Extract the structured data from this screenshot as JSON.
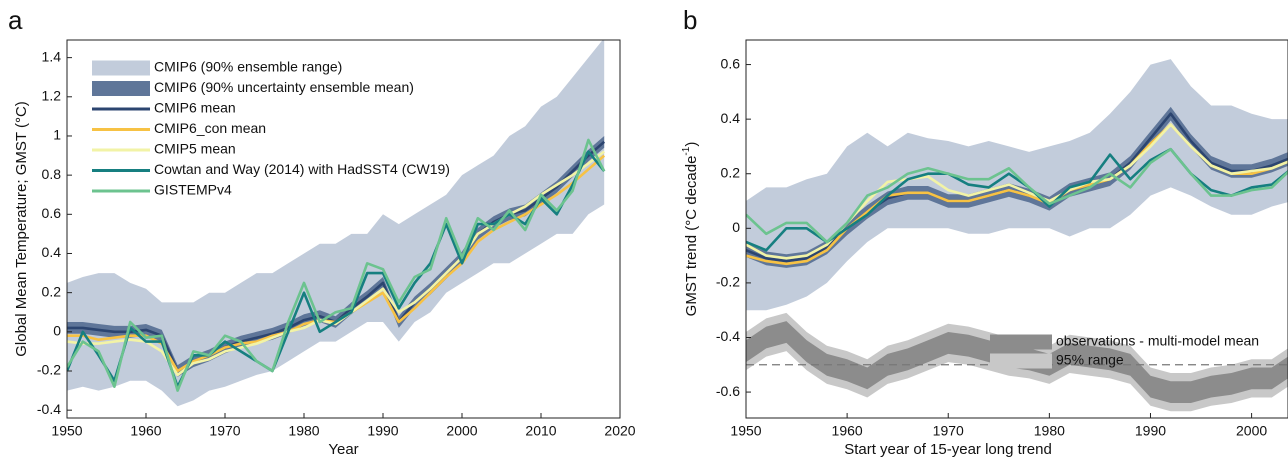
{
  "chart_data": [
    {
      "type": "line",
      "panel_label": "a",
      "xlabel": "Year",
      "ylabel": "Global Mean Temperature; GMST (°C)",
      "xlim": [
        1950,
        2020
      ],
      "ylim": [
        -0.44,
        1.49
      ],
      "xticks": [
        1950,
        1960,
        1970,
        1980,
        1990,
        2000,
        2010,
        2020
      ],
      "yticks": [
        -0.4,
        -0.2,
        0,
        0.2,
        0.4,
        0.6,
        0.8,
        1,
        1.2,
        1.4
      ],
      "x": [
        1950,
        1952,
        1954,
        1956,
        1958,
        1960,
        1962,
        1964,
        1966,
        1968,
        1970,
        1972,
        1974,
        1976,
        1978,
        1980,
        1982,
        1984,
        1986,
        1988,
        1990,
        1992,
        1994,
        1996,
        1998,
        2000,
        2002,
        2004,
        2006,
        2008,
        2010,
        2012,
        2014,
        2016,
        2018
      ],
      "series": [
        {
          "name": "CMIP6 (90% ensemble range)",
          "kind": "band",
          "color": "#c2ccdb",
          "lower": [
            -0.3,
            -0.28,
            -0.3,
            -0.28,
            -0.25,
            -0.25,
            -0.3,
            -0.38,
            -0.35,
            -0.3,
            -0.28,
            -0.25,
            -0.22,
            -0.2,
            -0.15,
            -0.1,
            -0.05,
            -0.05,
            0,
            0.05,
            0.05,
            -0.05,
            0.05,
            0.1,
            0.2,
            0.25,
            0.3,
            0.35,
            0.35,
            0.4,
            0.45,
            0.5,
            0.5,
            0.6,
            0.65
          ],
          "upper": [
            0.25,
            0.28,
            0.3,
            0.3,
            0.25,
            0.22,
            0.15,
            0.15,
            0.15,
            0.2,
            0.2,
            0.25,
            0.3,
            0.3,
            0.35,
            0.4,
            0.45,
            0.45,
            0.5,
            0.5,
            0.6,
            0.55,
            0.6,
            0.65,
            0.7,
            0.8,
            0.85,
            0.9,
            1.0,
            1.05,
            1.15,
            1.2,
            1.3,
            1.4,
            1.5
          ]
        },
        {
          "name": "CMIP6 (90% uncertainty ensemble mean)",
          "kind": "band",
          "color": "#5f7699",
          "lower": [
            -0.01,
            -0.01,
            -0.02,
            -0.03,
            -0.03,
            -0.02,
            -0.05,
            -0.23,
            -0.18,
            -0.15,
            -0.11,
            -0.08,
            -0.06,
            -0.04,
            -0.01,
            0.03,
            0.05,
            0.02,
            0.09,
            0.15,
            0.22,
            0.02,
            0.12,
            0.19,
            0.27,
            0.35,
            0.47,
            0.53,
            0.57,
            0.59,
            0.65,
            0.71,
            0.79,
            0.87,
            0.94
          ],
          "upper": [
            0.05,
            0.05,
            0.04,
            0.03,
            0.03,
            0.04,
            0.01,
            -0.17,
            -0.12,
            -0.09,
            -0.05,
            -0.02,
            0.0,
            0.02,
            0.05,
            0.09,
            0.11,
            0.08,
            0.15,
            0.21,
            0.28,
            0.08,
            0.18,
            0.25,
            0.33,
            0.41,
            0.53,
            0.59,
            0.63,
            0.65,
            0.71,
            0.77,
            0.85,
            0.93,
            1.0
          ]
        },
        {
          "name": "CMIP6 mean",
          "kind": "line",
          "color": "#2c4570",
          "values": [
            0.02,
            0.02,
            0.01,
            0.0,
            0.0,
            0.01,
            -0.02,
            -0.2,
            -0.15,
            -0.12,
            -0.08,
            -0.05,
            -0.03,
            -0.01,
            0.02,
            0.06,
            0.08,
            0.05,
            0.12,
            0.18,
            0.25,
            0.05,
            0.15,
            0.22,
            0.3,
            0.38,
            0.5,
            0.56,
            0.6,
            0.62,
            0.68,
            0.74,
            0.82,
            0.9,
            0.97
          ]
        },
        {
          "name": "CMIP6_con mean",
          "kind": "line",
          "color": "#f7c244",
          "values": [
            -0.02,
            -0.02,
            -0.04,
            -0.03,
            -0.02,
            -0.02,
            -0.06,
            -0.2,
            -0.15,
            -0.12,
            -0.08,
            -0.06,
            -0.05,
            -0.02,
            0.0,
            0.04,
            0.06,
            0.05,
            0.1,
            0.15,
            0.2,
            0.05,
            0.12,
            0.2,
            0.28,
            0.35,
            0.46,
            0.52,
            0.56,
            0.6,
            0.65,
            0.7,
            0.76,
            0.83,
            0.9
          ]
        },
        {
          "name": "CMIP5 mean",
          "kind": "line",
          "color": "#f2f3a6",
          "values": [
            -0.05,
            -0.06,
            -0.06,
            -0.05,
            -0.04,
            -0.05,
            -0.1,
            -0.22,
            -0.16,
            -0.14,
            -0.1,
            -0.08,
            -0.06,
            -0.03,
            0.0,
            0.02,
            0.06,
            0.04,
            0.1,
            0.16,
            0.22,
            0.1,
            0.15,
            0.22,
            0.3,
            0.38,
            0.5,
            0.55,
            0.6,
            0.64,
            0.7,
            0.75,
            0.8,
            0.86,
            0.92
          ]
        },
        {
          "name": "Cowtan and Way (2014) with HadSST4 (CW19)",
          "kind": "line",
          "color": "#167f80",
          "values": [
            -0.2,
            0.0,
            -0.12,
            -0.25,
            0.02,
            -0.05,
            -0.05,
            -0.28,
            -0.12,
            -0.12,
            -0.05,
            -0.1,
            -0.15,
            -0.2,
            0.0,
            0.2,
            0.0,
            0.05,
            0.1,
            0.3,
            0.3,
            0.12,
            0.25,
            0.35,
            0.55,
            0.35,
            0.55,
            0.55,
            0.6,
            0.55,
            0.68,
            0.6,
            0.75,
            0.92,
            0.82
          ]
        },
        {
          "name": "GISTEMPv4",
          "kind": "line",
          "color": "#6cc38f",
          "values": [
            -0.18,
            -0.05,
            -0.1,
            -0.28,
            0.05,
            -0.03,
            -0.02,
            -0.3,
            -0.1,
            -0.12,
            -0.02,
            -0.05,
            -0.15,
            -0.2,
            0.05,
            0.25,
            0.05,
            0.1,
            0.12,
            0.35,
            0.32,
            0.15,
            0.28,
            0.32,
            0.58,
            0.38,
            0.58,
            0.52,
            0.62,
            0.52,
            0.7,
            0.62,
            0.72,
            0.98,
            0.82
          ]
        }
      ]
    },
    {
      "type": "line",
      "panel_label": "b",
      "xlabel": "Start year of 15-year long trend",
      "ylabel": "GMST trend (°C decade",
      "ylabel_sup": "-1",
      "ylabel_end": ")",
      "xlim": [
        1950,
        2003.6
      ],
      "ylim": [
        -0.695,
        0.69
      ],
      "xticks": [
        1950,
        1960,
        1970,
        1980,
        1990,
        2000
      ],
      "yticks": [
        -0.6,
        -0.4,
        -0.2,
        0,
        0.2,
        0.4,
        0.6
      ],
      "reference_line": -0.5,
      "x": [
        1950,
        1952,
        1954,
        1956,
        1958,
        1960,
        1962,
        1964,
        1966,
        1968,
        1970,
        1972,
        1974,
        1976,
        1978,
        1980,
        1982,
        1984,
        1986,
        1988,
        1990,
        1992,
        1994,
        1996,
        1998,
        2000,
        2002,
        2004
      ],
      "series": [
        {
          "kind": "band",
          "color": "#c2ccdb",
          "lower": [
            -0.3,
            -0.3,
            -0.28,
            -0.25,
            -0.2,
            -0.12,
            -0.05,
            0.0,
            0.0,
            0.0,
            0.0,
            -0.02,
            -0.02,
            0.0,
            0.0,
            0.0,
            -0.03,
            0.0,
            0.0,
            0.05,
            0.12,
            0.15,
            0.12,
            0.08,
            0.05,
            0.05,
            0.08,
            0.1
          ],
          "upper": [
            0.1,
            0.15,
            0.15,
            0.18,
            0.2,
            0.3,
            0.35,
            0.3,
            0.35,
            0.33,
            0.32,
            0.3,
            0.32,
            0.3,
            0.28,
            0.3,
            0.32,
            0.35,
            0.42,
            0.5,
            0.6,
            0.62,
            0.52,
            0.45,
            0.45,
            0.42,
            0.4,
            0.4
          ]
        },
        {
          "kind": "band",
          "color": "#5f7699",
          "lower": [
            -0.105,
            -0.135,
            -0.145,
            -0.135,
            -0.095,
            -0.025,
            0.035,
            0.085,
            0.105,
            0.105,
            0.075,
            0.075,
            0.095,
            0.115,
            0.095,
            0.065,
            0.115,
            0.135,
            0.155,
            0.215,
            0.305,
            0.395,
            0.295,
            0.215,
            0.185,
            0.185,
            0.205,
            0.235
          ],
          "upper": [
            -0.055,
            -0.085,
            -0.095,
            -0.085,
            -0.045,
            0.025,
            0.085,
            0.135,
            0.155,
            0.155,
            0.125,
            0.125,
            0.145,
            0.165,
            0.145,
            0.115,
            0.165,
            0.185,
            0.205,
            0.265,
            0.355,
            0.445,
            0.345,
            0.265,
            0.235,
            0.235,
            0.255,
            0.285
          ]
        },
        {
          "kind": "line",
          "color": "#2c4570",
          "values": [
            -0.08,
            -0.11,
            -0.12,
            -0.11,
            -0.07,
            0.0,
            0.06,
            0.11,
            0.13,
            0.13,
            0.1,
            0.1,
            0.12,
            0.14,
            0.12,
            0.09,
            0.14,
            0.16,
            0.18,
            0.24,
            0.33,
            0.42,
            0.32,
            0.24,
            0.21,
            0.21,
            0.23,
            0.26
          ]
        },
        {
          "kind": "line",
          "color": "#f7c244",
          "values": [
            -0.1,
            -0.12,
            -0.13,
            -0.12,
            -0.08,
            0.0,
            0.06,
            0.12,
            0.13,
            0.13,
            0.1,
            0.1,
            0.12,
            0.14,
            0.12,
            0.09,
            0.14,
            0.16,
            0.18,
            0.23,
            0.31,
            0.38,
            0.3,
            0.23,
            0.2,
            0.2,
            0.22,
            0.25
          ]
        },
        {
          "kind": "line",
          "color": "#f2f3a6",
          "values": [
            -0.06,
            -0.1,
            -0.11,
            -0.1,
            -0.06,
            0.02,
            0.1,
            0.17,
            0.18,
            0.19,
            0.14,
            0.12,
            0.14,
            0.16,
            0.13,
            0.1,
            0.14,
            0.17,
            0.18,
            0.23,
            0.3,
            0.38,
            0.3,
            0.23,
            0.2,
            0.21,
            0.22,
            0.25
          ]
        },
        {
          "kind": "line",
          "color": "#167f80",
          "values": [
            -0.05,
            -0.08,
            0.0,
            0.0,
            -0.05,
            0.0,
            0.05,
            0.12,
            0.18,
            0.2,
            0.2,
            0.16,
            0.15,
            0.2,
            0.15,
            0.08,
            0.15,
            0.17,
            0.27,
            0.18,
            0.25,
            0.29,
            0.2,
            0.14,
            0.12,
            0.15,
            0.16,
            0.22
          ]
        },
        {
          "kind": "line",
          "color": "#6cc38f",
          "values": [
            0.05,
            -0.02,
            0.02,
            0.02,
            -0.05,
            0.02,
            0.12,
            0.15,
            0.2,
            0.22,
            0.2,
            0.18,
            0.18,
            0.22,
            0.15,
            0.09,
            0.12,
            0.15,
            0.2,
            0.15,
            0.24,
            0.29,
            0.2,
            0.12,
            0.12,
            0.14,
            0.15,
            0.22
          ]
        },
        {
          "name": "95% range",
          "kind": "band",
          "color": "#c8c8c8",
          "lower": [
            -0.52,
            -0.47,
            -0.45,
            -0.52,
            -0.57,
            -0.59,
            -0.62,
            -0.57,
            -0.55,
            -0.52,
            -0.49,
            -0.5,
            -0.52,
            -0.54,
            -0.55,
            -0.57,
            -0.53,
            -0.54,
            -0.55,
            -0.57,
            -0.65,
            -0.67,
            -0.67,
            -0.65,
            -0.64,
            -0.62,
            -0.62,
            -0.57
          ],
          "upper": [
            -0.38,
            -0.33,
            -0.31,
            -0.38,
            -0.43,
            -0.45,
            -0.48,
            -0.43,
            -0.41,
            -0.38,
            -0.35,
            -0.36,
            -0.38,
            -0.4,
            -0.41,
            -0.43,
            -0.39,
            -0.4,
            -0.41,
            -0.43,
            -0.51,
            -0.53,
            -0.53,
            -0.51,
            -0.5,
            -0.48,
            -0.48,
            -0.43
          ]
        },
        {
          "name": "observations - multi-model mean",
          "kind": "band",
          "color": "#8c8c8c",
          "lower": [
            -0.49,
            -0.44,
            -0.42,
            -0.49,
            -0.54,
            -0.56,
            -0.59,
            -0.54,
            -0.52,
            -0.49,
            -0.46,
            -0.47,
            -0.49,
            -0.51,
            -0.52,
            -0.54,
            -0.5,
            -0.51,
            -0.52,
            -0.54,
            -0.62,
            -0.64,
            -0.64,
            -0.62,
            -0.61,
            -0.59,
            -0.59,
            -0.54
          ],
          "upper": [
            -0.41,
            -0.36,
            -0.34,
            -0.41,
            -0.46,
            -0.48,
            -0.51,
            -0.46,
            -0.44,
            -0.41,
            -0.38,
            -0.39,
            -0.41,
            -0.43,
            -0.44,
            -0.46,
            -0.42,
            -0.43,
            -0.44,
            -0.46,
            -0.54,
            -0.56,
            -0.56,
            -0.54,
            -0.53,
            -0.51,
            -0.51,
            -0.46
          ]
        }
      ]
    }
  ]
}
